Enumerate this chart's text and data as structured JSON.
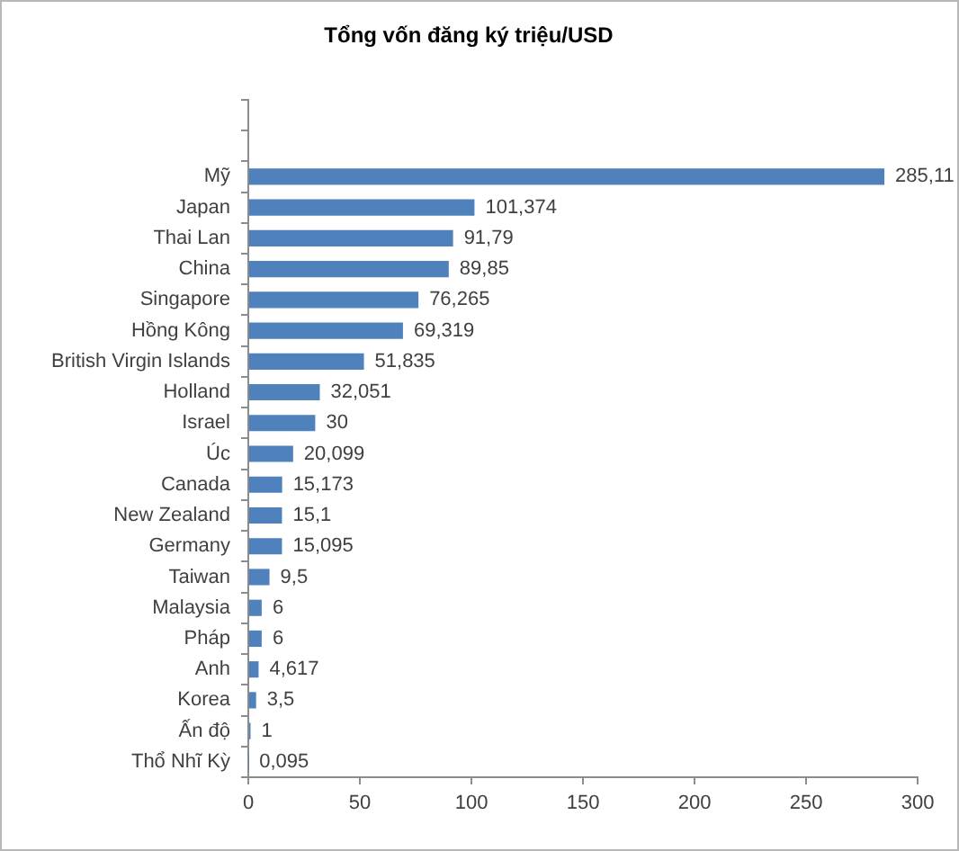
{
  "chart_data": {
    "type": "bar",
    "orientation": "horizontal",
    "title": "Tổng vốn đăng ký triệu/USD",
    "categories": [
      null,
      null,
      "Mỹ",
      "Japan",
      "Thai Lan",
      "China",
      "Singapore",
      "Hồng Kông",
      "British Virgin Islands",
      "Holland",
      "Israel",
      "Úc",
      "Canada",
      "New Zealand",
      "Germany",
      "Taiwan",
      "Malaysia",
      "Pháp",
      "Anh",
      "Korea",
      "Ấn độ",
      "Thổ Nhĩ Kỳ"
    ],
    "values": [
      null,
      null,
      285.11,
      101.374,
      91.79,
      89.85,
      76.265,
      69.319,
      51.835,
      32.051,
      30,
      20.099,
      15.173,
      15.1,
      15.095,
      9.5,
      6,
      6,
      4.617,
      3.5,
      1,
      0.095
    ],
    "value_labels": [
      null,
      null,
      "285,11",
      "101,374",
      "91,79",
      "89,85",
      "76,265",
      "69,319",
      "51,835",
      "32,051",
      "30",
      "20,099",
      "15,173",
      "15,1",
      "15,095",
      "9,5",
      "6",
      "6",
      "4,617",
      "3,5",
      "1",
      "0,095"
    ],
    "color": "#4f81bd",
    "xlim": [
      0,
      300
    ],
    "xticks": [
      0,
      50,
      100,
      150,
      200,
      250,
      300
    ]
  }
}
